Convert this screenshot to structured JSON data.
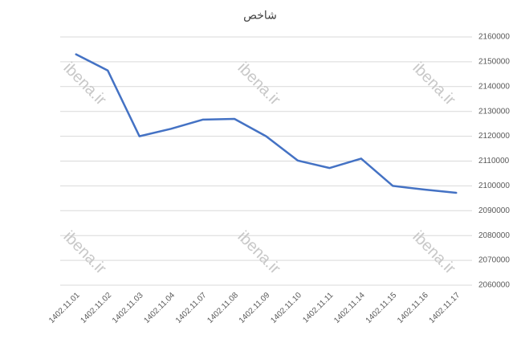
{
  "chart_data": {
    "type": "line",
    "title": "شاخص",
    "categories": [
      "1402.11.01",
      "1402.11.02",
      "1402.11.03",
      "1402.11.04",
      "1402.11.07",
      "1402.11.08",
      "1402.11.09",
      "1402.11.10",
      "1402.11.11",
      "1402.11.14",
      "1402.11.15",
      "1402.11.16",
      "1402.11.17"
    ],
    "series": [
      {
        "name": "شاخص",
        "color": "#4472c4",
        "values": [
          2153000,
          2146500,
          2120000,
          2123000,
          2126700,
          2127000,
          2120000,
          2110200,
          2107200,
          2111000,
          2100000,
          2098500,
          2097200
        ]
      }
    ],
    "ylim": [
      2060000,
      2160000
    ],
    "yticks": [
      2060000,
      2070000,
      2080000,
      2090000,
      2100000,
      2110000,
      2120000,
      2130000,
      2140000,
      2150000,
      2160000
    ],
    "grid": true,
    "annotations": [
      "ibena.ir",
      "ibena.ir",
      "ibena.ir",
      "ibena.ir",
      "ibena.ir",
      "ibena.ir"
    ]
  }
}
